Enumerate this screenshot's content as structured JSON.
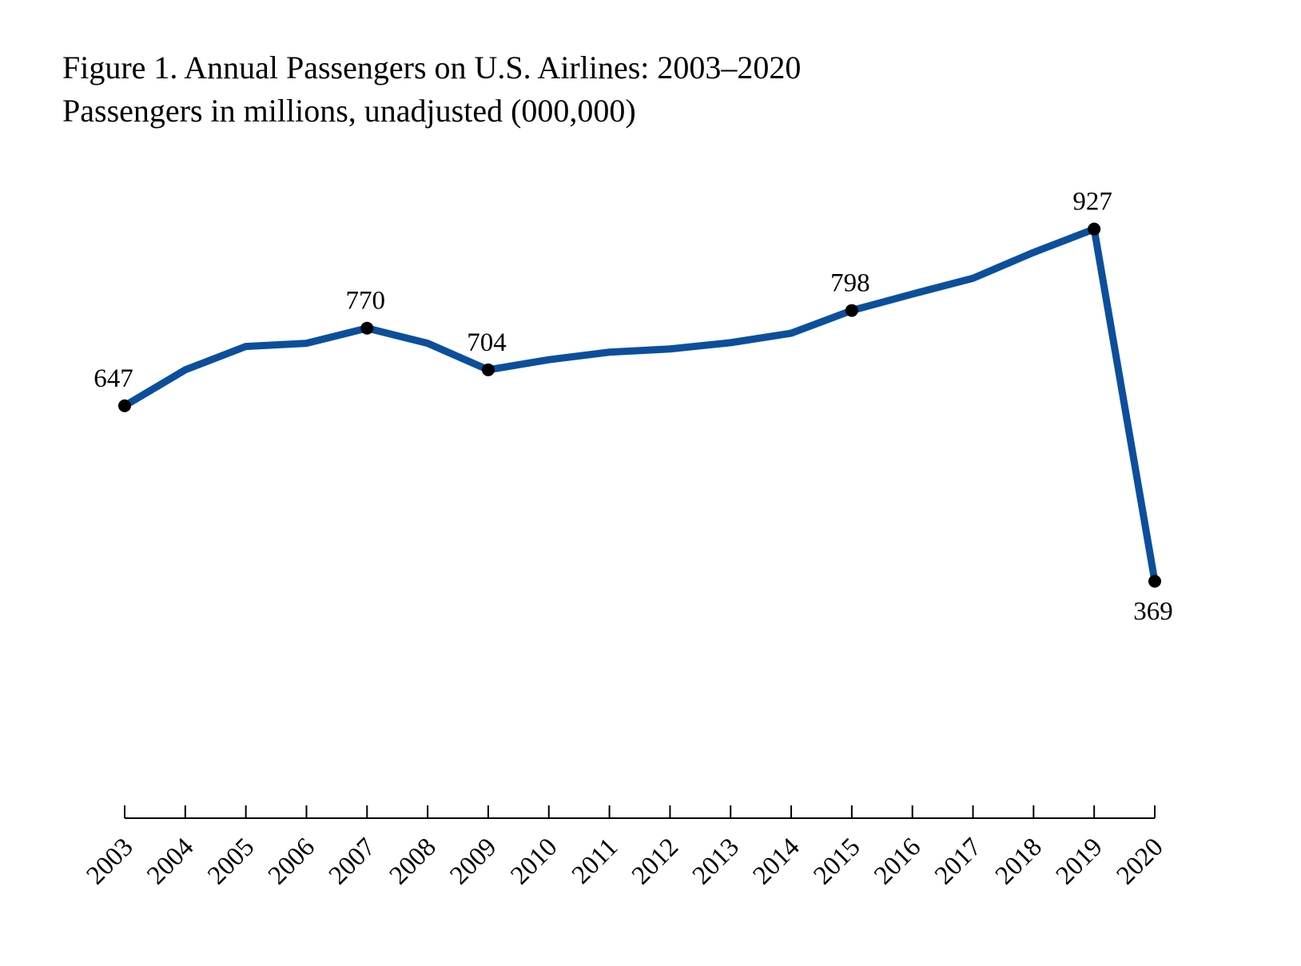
{
  "chart_data": {
    "type": "line",
    "title": "Figure 1. Annual Passengers on U.S. Airlines: 2003–2020",
    "subtitle": "Passengers in millions, unadjusted (000,000)",
    "xlabel": "",
    "ylabel": "",
    "x": [
      2003,
      2004,
      2005,
      2006,
      2007,
      2008,
      2009,
      2010,
      2011,
      2012,
      2013,
      2014,
      2015,
      2016,
      2017,
      2018,
      2019,
      2020
    ],
    "tick_labels": [
      "2003",
      "2004",
      "2005",
      "2006",
      "2007",
      "2008",
      "2009",
      "2010",
      "2011",
      "2012",
      "2013",
      "2014",
      "2015",
      "2016",
      "2017",
      "2018",
      "2019",
      "2020"
    ],
    "series": [
      {
        "values": [
          647,
          704,
          741,
          746,
          770,
          746,
          704,
          720,
          732,
          737,
          747,
          762,
          798,
          824,
          849,
          890,
          927,
          369
        ]
      }
    ],
    "labeled_points": [
      {
        "x": 2003,
        "label": "647",
        "position": "above"
      },
      {
        "x": 2007,
        "label": "770",
        "position": "above"
      },
      {
        "x": 2009,
        "label": "704",
        "position": "above"
      },
      {
        "x": 2015,
        "label": "798",
        "position": "above"
      },
      {
        "x": 2019,
        "label": "927",
        "position": "above"
      },
      {
        "x": 2020,
        "label": "369",
        "position": "below"
      }
    ],
    "ylim": [
      0,
      1000
    ],
    "grid": false,
    "y_axis_visible": false,
    "line_color": "#0b4f9c",
    "marker_color": "#000000"
  }
}
